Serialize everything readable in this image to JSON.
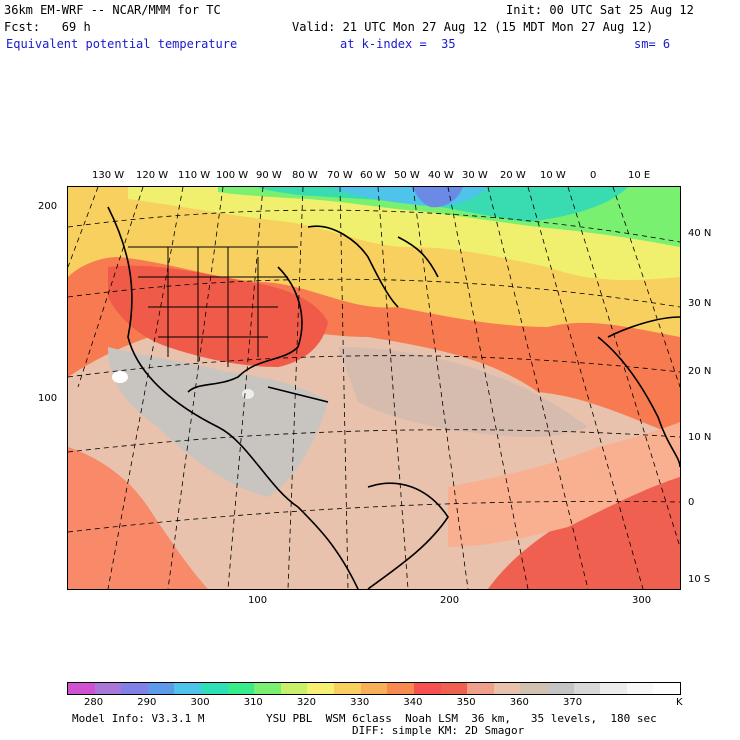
{
  "header": {
    "model_line": "36km EM-WRF -- NCAR/MMM for TC",
    "init_line": "Init: 00 UTC Sat 25 Aug 12",
    "fcst_line": "Fcst:   69 h",
    "valid_line": "Valid: 21 UTC Mon 27 Aug 12 (15 MDT Mon 27 Aug 12)",
    "field_name": "Equivalent potential temperature",
    "level": "at k-index =  35",
    "smoothing": "sm= 6"
  },
  "map": {
    "top_longitude_labels": [
      "130 W",
      "120 W",
      "110 W",
      "100 W",
      "90 W",
      "80 W",
      "70 W",
      "60 W",
      "50 W",
      "40 W",
      "30 W",
      "20 W",
      "10 W",
      "0",
      "10 E"
    ],
    "right_latitude_labels": [
      "40 N",
      "30 N",
      "20 N",
      "10 N",
      "0",
      "10 S"
    ],
    "left_grid_labels": [
      "200",
      "100"
    ],
    "bottom_grid_labels": [
      "100",
      "200",
      "300"
    ]
  },
  "colorbar": {
    "labels": [
      "280",
      "290",
      "300",
      "310",
      "320",
      "330",
      "340",
      "350",
      "360",
      "370"
    ],
    "unit": "K",
    "colors": [
      "#d052d0",
      "#a877d8",
      "#8080e6",
      "#5b9bea",
      "#4ec4ea",
      "#2ee0b8",
      "#38ec8a",
      "#7af070",
      "#c8f06a",
      "#f8f072",
      "#f8d060",
      "#f8b058",
      "#f88a50",
      "#f85050",
      "#f06050",
      "#f0a08a",
      "#e8c2ac",
      "#d2c0b0",
      "#c4c4c4",
      "#d8d8d8",
      "#ececec",
      "#f8f8f8",
      "#ffffff"
    ]
  },
  "footer": {
    "model_info": "Model Info: V3.3.1 M",
    "physics_line1": "YSU PBL  WSM 6class  Noah LSM  36 km,   35 levels,  180 sec",
    "physics_line2": "DIFF: simple KM: 2D Smagor"
  }
}
